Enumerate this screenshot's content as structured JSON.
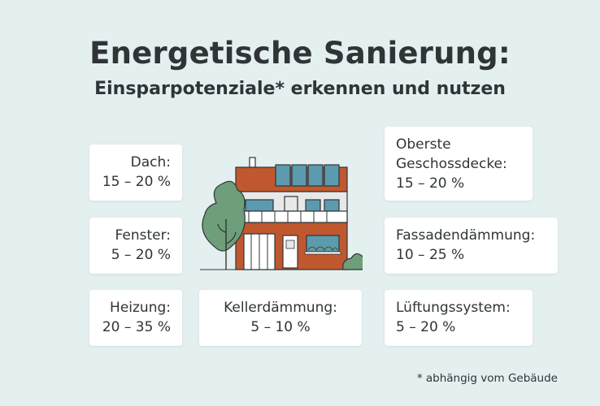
{
  "title": "Energetische Sanierung:",
  "subtitle": "Einsparpotenziale* erkennen und nutzen",
  "cards": {
    "dach": {
      "label": "Dach:",
      "value": "15 – 20 %"
    },
    "fenster": {
      "label": "Fenster:",
      "value": "5 – 20 %"
    },
    "heizung": {
      "label": "Heizung:",
      "value": "20 – 35 %"
    },
    "kellerdaemmung": {
      "label": "Kellerdämmung:",
      "value": "5 – 10 %"
    },
    "oberste_geschossdecke": {
      "label_line1": "Oberste",
      "label_line2": "Geschossdecke:",
      "value": "15 – 20 %"
    },
    "fassadendaemmung": {
      "label": "Fassadendämmung:",
      "value": "10 – 25 %"
    },
    "lueftungssystem": {
      "label": "Lüftungssystem:",
      "value": "5 – 20 %"
    }
  },
  "footnote": "* abhängig vom Gebäude",
  "colors": {
    "background": "#e4eff0",
    "card": "#ffffff",
    "text": "#2f3537",
    "brick": "#c0582f",
    "tree": "#6e9e7a",
    "window_blue": "#5c9ab0"
  },
  "illustration": "house-with-tree"
}
